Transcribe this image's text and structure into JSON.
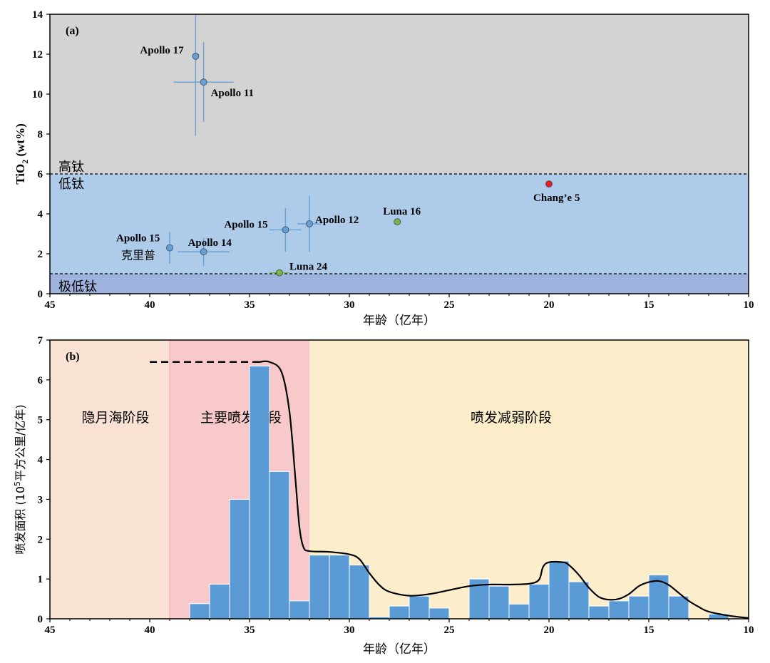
{
  "chart_data": [
    {
      "type": "scatter",
      "panel_label": "(a)",
      "xlabel": "年龄（亿年）",
      "ylabel_main": "TiO",
      "ylabel_sub": "2",
      "ylabel_unit": " (wt%)",
      "xlim": [
        45,
        10
      ],
      "ylim": [
        0,
        14
      ],
      "xticks": [
        45,
        40,
        35,
        30,
        25,
        20,
        15,
        10
      ],
      "yticks": [
        0,
        2,
        4,
        6,
        8,
        10,
        12,
        14
      ],
      "regions": [
        {
          "label": "高钛",
          "y0": 6,
          "y1": 14,
          "color": "#d3d3d3"
        },
        {
          "label": "低钛",
          "y0": 1,
          "y1": 6,
          "color": "#aecbe9"
        },
        {
          "label": "极低钛",
          "y0": 0,
          "y1": 1,
          "color": "#9fb3df"
        }
      ],
      "thresholds": [
        6,
        1
      ],
      "points": [
        {
          "name": "Apollo 17",
          "x": 37.7,
          "y": 11.9,
          "xerr": 0.0,
          "yerr": [
            4.0,
            2.1
          ],
          "color": "#6a9fd4"
        },
        {
          "name": "Apollo 11",
          "x": 37.3,
          "y": 10.6,
          "xerr": 1.5,
          "yerr": [
            2.0,
            2.0
          ],
          "color": "#6a9fd4"
        },
        {
          "name": "Apollo 15",
          "x": 33.2,
          "y": 3.2,
          "xerr": 0.8,
          "yerr": [
            1.1,
            1.1
          ],
          "color": "#6a9fd4"
        },
        {
          "name": "Apollo 12",
          "x": 32.0,
          "y": 3.5,
          "xerr": 0.6,
          "yerr": [
            1.4,
            1.4
          ],
          "color": "#6a9fd4"
        },
        {
          "name": "Luna 16",
          "x": 27.6,
          "y": 3.6,
          "xerr": 0.0,
          "yerr": [
            0,
            0
          ],
          "color": "#7cb342"
        },
        {
          "name": "Chang’e 5",
          "x": 20.0,
          "y": 5.5,
          "xerr": 0.0,
          "yerr": [
            0,
            0
          ],
          "color": "#ee1c1c"
        },
        {
          "name": "Apollo 15",
          "name2": "克里普",
          "x": 39.0,
          "y": 2.3,
          "xerr": 0.0,
          "yerr": [
            0.8,
            0.8
          ],
          "color": "#6a9fd4"
        },
        {
          "name": "Apollo 14",
          "x": 37.3,
          "y": 2.1,
          "xerr": 1.3,
          "yerr": [
            0.7,
            0.7
          ],
          "color": "#6a9fd4"
        },
        {
          "name": "Luna 24",
          "x": 33.5,
          "y": 1.05,
          "xerr": 0.5,
          "yerr": [
            0,
            0
          ],
          "color": "#7cb342"
        }
      ]
    },
    {
      "type": "bar",
      "panel_label": "(b)",
      "xlabel": "年龄（亿年）",
      "ylabel_prefix": "喷发面积 (10",
      "ylabel_sup": "5",
      "ylabel_suffix": "平方公里/亿年)",
      "xlim": [
        45,
        10
      ],
      "ylim": [
        0,
        7
      ],
      "xticks": [
        45,
        40,
        35,
        30,
        25,
        20,
        15,
        10
      ],
      "yticks": [
        0,
        1,
        2,
        3,
        4,
        5,
        6,
        7
      ],
      "phases": [
        {
          "label": "隐月海阶段",
          "x0": 45,
          "x1": 39,
          "color": "#f9e2d4"
        },
        {
          "label": "主要喷发阶段",
          "x0": 39,
          "x1": 32,
          "color": "#f8c9cb"
        },
        {
          "label": "喷发减弱阶段",
          "x0": 32,
          "x1": 10,
          "color": "#fdeecb"
        }
      ],
      "bar_color": "#5b9bd5",
      "bin_width": 1,
      "bins": [
        {
          "x": 37.5,
          "value": 0.38
        },
        {
          "x": 36.5,
          "value": 0.87
        },
        {
          "x": 35.5,
          "value": 3.0
        },
        {
          "x": 34.5,
          "value": 6.35
        },
        {
          "x": 33.5,
          "value": 3.7
        },
        {
          "x": 32.5,
          "value": 0.45
        },
        {
          "x": 31.5,
          "value": 1.6
        },
        {
          "x": 30.5,
          "value": 1.6
        },
        {
          "x": 29.5,
          "value": 1.35
        },
        {
          "x": 28.5,
          "value": 0.05
        },
        {
          "x": 27.5,
          "value": 0.32
        },
        {
          "x": 26.5,
          "value": 0.57
        },
        {
          "x": 25.5,
          "value": 0.27
        },
        {
          "x": 23.5,
          "value": 1.0
        },
        {
          "x": 22.5,
          "value": 0.82
        },
        {
          "x": 21.5,
          "value": 0.37
        },
        {
          "x": 20.5,
          "value": 0.87
        },
        {
          "x": 19.5,
          "value": 1.45
        },
        {
          "x": 18.5,
          "value": 0.93
        },
        {
          "x": 17.5,
          "value": 0.32
        },
        {
          "x": 16.5,
          "value": 0.45
        },
        {
          "x": 15.5,
          "value": 0.57
        },
        {
          "x": 14.5,
          "value": 1.1
        },
        {
          "x": 13.5,
          "value": 0.57
        },
        {
          "x": 11.5,
          "value": 0.12
        }
      ],
      "dashed_level": {
        "x0": 40,
        "x1": 34.5,
        "y": 6.45
      },
      "envelope": [
        [
          34.5,
          6.45
        ],
        [
          34.0,
          6.45
        ],
        [
          33.4,
          6.2
        ],
        [
          33.0,
          5.2
        ],
        [
          32.7,
          3.5
        ],
        [
          32.5,
          2.3
        ],
        [
          32.3,
          1.8
        ],
        [
          32.0,
          1.7
        ],
        [
          31.0,
          1.68
        ],
        [
          30.0,
          1.62
        ],
        [
          29.5,
          1.5
        ],
        [
          29.0,
          1.15
        ],
        [
          28.5,
          0.85
        ],
        [
          28.0,
          0.68
        ],
        [
          27.0,
          0.58
        ],
        [
          26.0,
          0.62
        ],
        [
          25.0,
          0.72
        ],
        [
          24.0,
          0.82
        ],
        [
          23.0,
          0.86
        ],
        [
          22.0,
          0.86
        ],
        [
          21.0,
          0.88
        ],
        [
          20.5,
          0.98
        ],
        [
          20.3,
          1.3
        ],
        [
          20.0,
          1.42
        ],
        [
          19.3,
          1.42
        ],
        [
          19.0,
          1.35
        ],
        [
          18.5,
          1.1
        ],
        [
          18.0,
          0.78
        ],
        [
          17.5,
          0.55
        ],
        [
          17.0,
          0.48
        ],
        [
          16.5,
          0.5
        ],
        [
          16.0,
          0.62
        ],
        [
          15.5,
          0.82
        ],
        [
          15.0,
          0.92
        ],
        [
          14.5,
          0.95
        ],
        [
          14.0,
          0.85
        ],
        [
          13.5,
          0.65
        ],
        [
          13.0,
          0.45
        ],
        [
          12.5,
          0.3
        ],
        [
          12.0,
          0.18
        ],
        [
          11.0,
          0.08
        ],
        [
          10.0,
          0.02
        ]
      ]
    }
  ]
}
